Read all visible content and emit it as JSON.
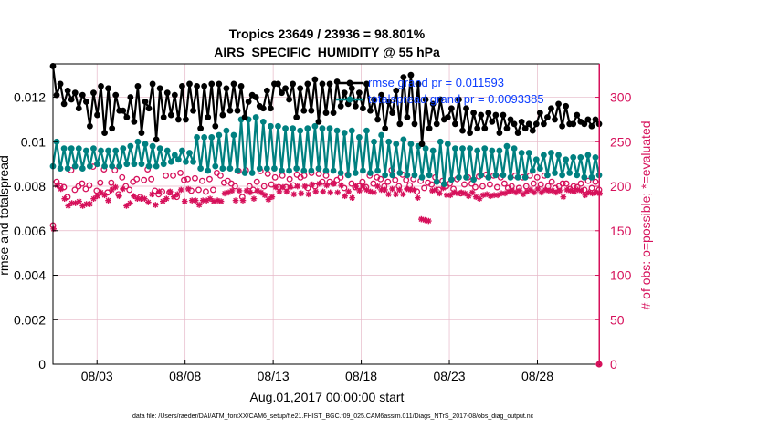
{
  "chart_data": {
    "type": "line",
    "title": "Tropics 23649 / 23936 = 98.801%",
    "subtitle": "AIRS_SPECIFIC_HUMIDITY @ 55 hPa",
    "xlabel": "Aug.01,2017 00:00:00 start",
    "ylabel_left": "rmse and totalspread",
    "ylabel_right": "# of obs: o=possible; *=evaluated",
    "footer": "data file: /Users/raeder/DAI/ATM_forcXX/CAM6_setup/f.e21.FHIST_BGC.f09_025.CAM6assim.011/Diags_NTrS_2017-08/obs_diag_output.nc",
    "x_range_days": [
      0.5,
      31.5
    ],
    "ylim_left": [
      0,
      0.0135
    ],
    "ylim_right": [
      0,
      337.5
    ],
    "x_ticks": [
      {
        "day": 3,
        "label": "08/03"
      },
      {
        "day": 8,
        "label": "08/08"
      },
      {
        "day": 13,
        "label": "08/13"
      },
      {
        "day": 18,
        "label": "08/18"
      },
      {
        "day": 23,
        "label": "08/23"
      },
      {
        "day": 28,
        "label": "08/28"
      }
    ],
    "y_ticks_left": [
      "0",
      "0.002",
      "0.004",
      "0.006",
      "0.008",
      "0.01",
      "0.012"
    ],
    "y_tick_values_left": [
      0,
      0.002,
      0.004,
      0.006,
      0.008,
      0.01,
      0.012
    ],
    "y_ticks_right": [
      "0",
      "50",
      "100",
      "150",
      "200",
      "250",
      "300"
    ],
    "y_tick_values_right": [
      0,
      50,
      100,
      150,
      200,
      250,
      300
    ],
    "grid": true,
    "legend_location": "top-right",
    "colors": {
      "rmse": "#000000",
      "totalspread": "#008080",
      "obs": "#d6115b",
      "legend_text": "#0b3cff",
      "grid": "#e6b8c8"
    },
    "series": [
      {
        "name": "rmse grand pr = 0.011593",
        "axis": "left",
        "marker": "filled-circle",
        "values": [
          0.0134,
          0.0121,
          0.0126,
          0.0117,
          0.0123,
          0.0119,
          0.0122,
          0.0115,
          0.0121,
          0.0118,
          0.0107,
          0.0122,
          0.0112,
          0.0125,
          0.0104,
          0.0124,
          0.0106,
          0.0121,
          0.0114,
          0.0114,
          0.0111,
          0.012,
          0.0109,
          0.0125,
          0.0104,
          0.0118,
          0.0115,
          0.0126,
          0.0101,
          0.0124,
          0.0111,
          0.0122,
          0.0112,
          0.0121,
          0.011,
          0.0125,
          0.011,
          0.0126,
          0.0114,
          0.0125,
          0.0106,
          0.0125,
          0.0111,
          0.0126,
          0.0107,
          0.0126,
          0.0112,
          0.0124,
          0.0114,
          0.0126,
          0.0114,
          0.0125,
          0.0111,
          0.0118,
          0.0121,
          0.012,
          0.0116,
          0.0115,
          0.0123,
          0.0115,
          0.0126,
          0.0126,
          0.0122,
          0.0124,
          0.0119,
          0.0126,
          0.0111,
          0.0124,
          0.0114,
          0.0126,
          0.0114,
          0.0128,
          0.0109,
          0.0126,
          0.0113,
          0.0126,
          0.0113,
          0.0127,
          0.0116,
          0.0122,
          0.0117,
          0.0124,
          0.0116,
          0.0122,
          0.0115,
          0.0126,
          0.0114,
          0.0119,
          0.011,
          0.0121,
          0.0106,
          0.0118,
          0.0113,
          0.0123,
          0.0108,
          0.0129,
          0.0111,
          0.013,
          0.0108,
          0.0126,
          0.0099,
          0.0119,
          0.0106,
          0.0117,
          0.0108,
          0.0119,
          0.011,
          0.0111,
          0.0115,
          0.0108,
          0.0119,
          0.0105,
          0.0115,
          0.0104,
          0.0113,
          0.0106,
          0.0112,
          0.0106,
          0.0113,
          0.0109,
          0.0112,
          0.0104,
          0.0112,
          0.0106,
          0.011,
          0.0108,
          0.0104,
          0.0109,
          0.0106,
          0.0108,
          0.0105,
          0.0108,
          0.0113,
          0.0108,
          0.0111,
          0.0115,
          0.011,
          0.0117,
          0.0107,
          0.0116,
          0.0108,
          0.0108,
          0.0112,
          0.0109,
          0.0108,
          0.011,
          0.0107,
          0.011,
          0.0108
        ]
      },
      {
        "name": "totalspread grand pr = 0.0093385",
        "axis": "left",
        "marker": "filled-circle",
        "values": [
          0.0089,
          0.01,
          0.0088,
          0.0097,
          0.0088,
          0.0097,
          0.0089,
          0.0097,
          0.0088,
          0.0096,
          0.0089,
          0.0097,
          0.009,
          0.0096,
          0.0089,
          0.0096,
          0.0089,
          0.0096,
          0.0089,
          0.0097,
          0.009,
          0.0098,
          0.009,
          0.01,
          0.009,
          0.0099,
          0.0089,
          0.0098,
          0.0089,
          0.0097,
          0.009,
          0.0096,
          0.0091,
          0.0094,
          0.0092,
          0.0096,
          0.0091,
          0.0095,
          0.0091,
          0.0102,
          0.0088,
          0.0102,
          0.0087,
          0.0102,
          0.0089,
          0.0103,
          0.0088,
          0.0105,
          0.0088,
          0.0103,
          0.0087,
          0.011,
          0.0086,
          0.011,
          0.0086,
          0.0111,
          0.0088,
          0.0109,
          0.0088,
          0.0107,
          0.0088,
          0.0107,
          0.0087,
          0.0106,
          0.0087,
          0.0106,
          0.0088,
          0.0105,
          0.0087,
          0.0106,
          0.0087,
          0.0107,
          0.0088,
          0.0106,
          0.0087,
          0.0106,
          0.0087,
          0.0105,
          0.0086,
          0.0104,
          0.0085,
          0.0105,
          0.0086,
          0.0102,
          0.0087,
          0.0105,
          0.0086,
          0.01,
          0.0087,
          0.0103,
          0.0085,
          0.01,
          0.0085,
          0.0099,
          0.0086,
          0.0101,
          0.0085,
          0.0099,
          0.0085,
          0.0098,
          0.0084,
          0.0097,
          0.0085,
          0.0096,
          0.0082,
          0.01,
          0.0081,
          0.0099,
          0.0083,
          0.0097,
          0.0084,
          0.0097,
          0.0084,
          0.0097,
          0.0083,
          0.0096,
          0.0085,
          0.0097,
          0.0084,
          0.0096,
          0.0085,
          0.0096,
          0.0085,
          0.0098,
          0.0084,
          0.0097,
          0.0084,
          0.0095,
          0.0084,
          0.0095,
          0.0087,
          0.0092,
          0.0088,
          0.0094,
          0.0085,
          0.0095,
          0.0086,
          0.0094,
          0.0085,
          0.0092,
          0.0086,
          0.0093,
          0.0085,
          0.0093,
          0.0084,
          0.0094,
          0.0084,
          0.0093,
          0.0085
        ]
      },
      {
        "name": "# obs possible",
        "axis": "right",
        "marker": "open-circle",
        "values": [
          156,
          205,
          200,
          199,
          188,
          218,
          196,
          200,
          203,
          197,
          201,
          222,
          195,
          204,
          219,
          193,
          204,
          218,
          191,
          210,
          200,
          196,
          205,
          208,
          188,
          207,
          219,
          208,
          195,
          191,
          194,
          212,
          193,
          212,
          188,
          215,
          207,
          208,
          195,
          209,
          196,
          206,
          194,
          208,
          196,
          215,
          212,
          204,
          206,
          203,
          200,
          217,
          188,
          218,
          200,
          196,
          205,
          217,
          200,
          214,
          202,
          210,
          199,
          212,
          199,
          208,
          201,
          213,
          210,
          212,
          198,
          215,
          200,
          214,
          205,
          212,
          205,
          203,
          207,
          210,
          198,
          213,
          203,
          199,
          200,
          205,
          199,
          212,
          203,
          210,
          208,
          200,
          205,
          218,
          207,
          200,
          213,
          207,
          201,
          208,
          194,
          206,
          198,
          204,
          202,
          210,
          196,
          206,
          200,
          203,
          197,
          208,
          192,
          202,
          210,
          203,
          199,
          211,
          200,
          213,
          202,
          212,
          199,
          210,
          203,
          198,
          200,
          212,
          198,
          210,
          200,
          212,
          203,
          210,
          202,
          212,
          200,
          205,
          198,
          200,
          203,
          203,
          197,
          200,
          199,
          203,
          196,
          206,
          198,
          205,
          196
        ]
      },
      {
        "name": "# obs evaluated",
        "axis": "right",
        "marker": "asterisk",
        "values": [
          152,
          201,
          197,
          186,
          178,
          181,
          181,
          183,
          178,
          180,
          180,
          186,
          189,
          193,
          190,
          184,
          196,
          199,
          189,
          197,
          178,
          181,
          189,
          186,
          186,
          186,
          182,
          191,
          179,
          194,
          183,
          186,
          194,
          188,
          191,
          196,
          183,
          197,
          184,
          184,
          179,
          184,
          184,
          186,
          183,
          184,
          183,
          192,
          193,
          195,
          184,
          195,
          184,
          195,
          193,
          186,
          195,
          193,
          190,
          185,
          188,
          199,
          194,
          199,
          194,
          199,
          191,
          200,
          192,
          200,
          191,
          202,
          194,
          203,
          194,
          201,
          193,
          203,
          193,
          201,
          189,
          194,
          187,
          200,
          195,
          200,
          196,
          194,
          193,
          200,
          196,
          196,
          191,
          197,
          191,
          196,
          191,
          197,
          196,
          196,
          187,
          163,
          162,
          161,
          195,
          196,
          192,
          198,
          190,
          190,
          193,
          192,
          193,
          192,
          189,
          193,
          188,
          186,
          190,
          191,
          189,
          190,
          190,
          192,
          192,
          194,
          195,
          193,
          195,
          191,
          194,
          196,
          193,
          197,
          193,
          196,
          195,
          195,
          193,
          195,
          188,
          196,
          195,
          194,
          196,
          195,
          190,
          193,
          192,
          193,
          192
        ]
      }
    ],
    "end_marker_right": {
      "day": 31.5,
      "value": 0
    }
  }
}
